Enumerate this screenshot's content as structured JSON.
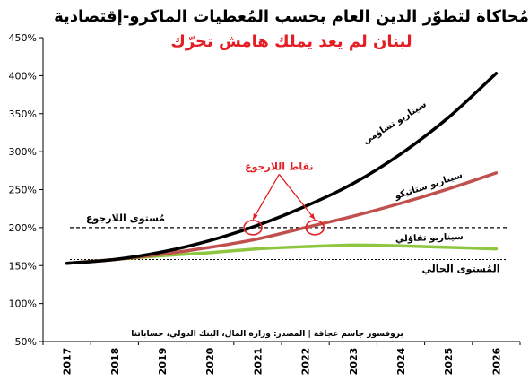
{
  "chart_data": {
    "type": "line",
    "title": "مُحاكاة لتطوّر الدين العام بحسب المُعطيات الماكرو-إقتصادية",
    "subtitle": "لبنان لم يعد يملك هامش تحرّك",
    "x": [
      "2017",
      "2018",
      "2019",
      "2020",
      "2021",
      "2022",
      "2023",
      "2024",
      "2025",
      "2026"
    ],
    "ylim": [
      50,
      450
    ],
    "yticks": [
      "50%",
      "100%",
      "150%",
      "200%",
      "250%",
      "300%",
      "350%",
      "400%",
      "450%"
    ],
    "ytick_values": [
      50,
      100,
      150,
      200,
      250,
      300,
      350,
      400,
      450
    ],
    "grid": false,
    "series": [
      {
        "name": "سيناريو تشاؤمي",
        "color": "#000000",
        "values": [
          153,
          158,
          168,
          183,
          203,
          228,
          258,
          297,
          345,
          403
        ]
      },
      {
        "name": "سيناريو ستاتيكو",
        "color": "#c0504d",
        "values": [
          153,
          158,
          165,
          174,
          185,
          200,
          215,
          232,
          251,
          272
        ]
      },
      {
        "name": "سيناريو تفاؤلي",
        "color": "#8ec63f",
        "values": [
          153,
          158,
          163,
          167,
          172,
          175,
          177,
          176,
          174,
          172
        ]
      }
    ],
    "reference_lines": [
      {
        "label": "مُستوى اللارجوع",
        "value": 200,
        "style": "dashed"
      },
      {
        "label": "المُستوى الحالي",
        "value": 158,
        "style": "dotted"
      }
    ],
    "annotation": {
      "label": "نقاط اللارجوع",
      "color": "#e31e24",
      "points": [
        {
          "x": 20.9,
          "y": 200
        },
        {
          "x": 22.2,
          "y": 200
        }
      ]
    },
    "source_note": "بروفسور جاسم عجاقة | المصدر: وزارة المال، البنك الدولي، حساباتنا"
  }
}
